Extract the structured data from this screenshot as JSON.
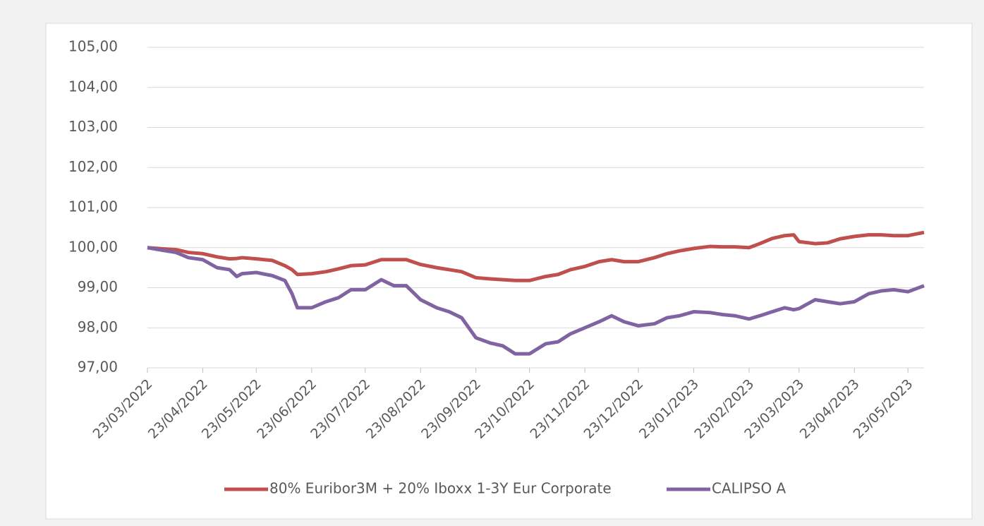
{
  "chart_data": {
    "type": "line",
    "x": [
      "23/03/2022",
      "01/04/2022",
      "08/04/2022",
      "15/04/2022",
      "23/04/2022",
      "01/05/2022",
      "08/05/2022",
      "12/05/2022",
      "15/05/2022",
      "23/05/2022",
      "01/06/2022",
      "08/06/2022",
      "12/06/2022",
      "15/06/2022",
      "23/06/2022",
      "01/07/2022",
      "08/07/2022",
      "15/07/2022",
      "23/07/2022",
      "01/08/2022",
      "08/08/2022",
      "15/08/2022",
      "23/08/2022",
      "01/09/2022",
      "08/09/2022",
      "15/09/2022",
      "23/09/2022",
      "01/10/2022",
      "08/10/2022",
      "15/10/2022",
      "23/10/2022",
      "01/11/2022",
      "08/11/2022",
      "15/11/2022",
      "23/11/2022",
      "01/12/2022",
      "08/12/2022",
      "15/12/2022",
      "23/12/2022",
      "01/01/2023",
      "08/01/2023",
      "15/01/2023",
      "23/01/2023",
      "01/02/2023",
      "08/02/2023",
      "15/02/2023",
      "23/02/2023",
      "01/03/2023",
      "08/03/2023",
      "15/03/2023",
      "20/03/2023",
      "23/03/2023",
      "01/04/2023",
      "08/04/2023",
      "15/04/2023",
      "23/04/2023",
      "01/05/2023",
      "08/05/2023",
      "15/05/2023",
      "23/05/2023",
      "01/06/2023"
    ],
    "series": [
      {
        "name": "80% Euribor3M + 20% Iboxx 1-3Y Eur Corporate",
        "color": "#c0504d",
        "values": [
          100.0,
          99.97,
          99.95,
          99.88,
          99.85,
          99.77,
          99.72,
          99.73,
          99.75,
          99.72,
          99.68,
          99.55,
          99.45,
          99.33,
          99.35,
          99.4,
          99.47,
          99.55,
          99.57,
          99.7,
          99.7,
          99.7,
          99.58,
          99.5,
          99.45,
          99.4,
          99.25,
          99.22,
          99.2,
          99.18,
          99.18,
          99.28,
          99.33,
          99.45,
          99.53,
          99.65,
          99.7,
          99.65,
          99.65,
          99.75,
          99.85,
          99.92,
          99.98,
          100.03,
          100.02,
          100.02,
          100.0,
          100.1,
          100.23,
          100.3,
          100.32,
          100.15,
          100.1,
          100.12,
          100.22,
          100.28,
          100.32,
          100.32,
          100.3,
          100.3,
          100.38
        ]
      },
      {
        "name": "CALIPSO A",
        "color": "#8064a2",
        "values": [
          100.0,
          99.93,
          99.88,
          99.75,
          99.7,
          99.5,
          99.45,
          99.28,
          99.35,
          99.38,
          99.3,
          99.18,
          98.85,
          98.5,
          98.5,
          98.65,
          98.75,
          98.95,
          98.95,
          99.2,
          99.05,
          99.05,
          98.7,
          98.5,
          98.4,
          98.25,
          97.75,
          97.62,
          97.55,
          97.35,
          97.35,
          97.6,
          97.65,
          97.85,
          98.0,
          98.15,
          98.3,
          98.15,
          98.05,
          98.1,
          98.25,
          98.3,
          98.4,
          98.38,
          98.33,
          98.3,
          98.22,
          98.3,
          98.4,
          98.5,
          98.45,
          98.48,
          98.7,
          98.65,
          98.6,
          98.65,
          98.85,
          98.92,
          98.95,
          98.9,
          99.05
        ]
      }
    ],
    "xlim": [
      "23/03/2022",
      "01/06/2023"
    ],
    "xticks": [
      "23/03/2022",
      "23/04/2022",
      "23/05/2022",
      "23/06/2022",
      "23/07/2022",
      "23/08/2022",
      "23/09/2022",
      "23/10/2022",
      "23/11/2022",
      "23/12/2022",
      "23/01/2023",
      "23/02/2023",
      "23/03/2023",
      "23/04/2023",
      "23/05/2023"
    ],
    "ylim": [
      97,
      105
    ],
    "yticks": [
      {
        "value": 97,
        "label": "97,00"
      },
      {
        "value": 98,
        "label": "98,00"
      },
      {
        "value": 99,
        "label": "99,00"
      },
      {
        "value": 100,
        "label": "100,00"
      },
      {
        "value": 101,
        "label": "101,00"
      },
      {
        "value": 102,
        "label": "102,00"
      },
      {
        "value": 103,
        "label": "103,00"
      },
      {
        "value": 104,
        "label": "104,00"
      },
      {
        "value": 105,
        "label": "105,00"
      }
    ],
    "grid": true,
    "legend": "bottom"
  }
}
